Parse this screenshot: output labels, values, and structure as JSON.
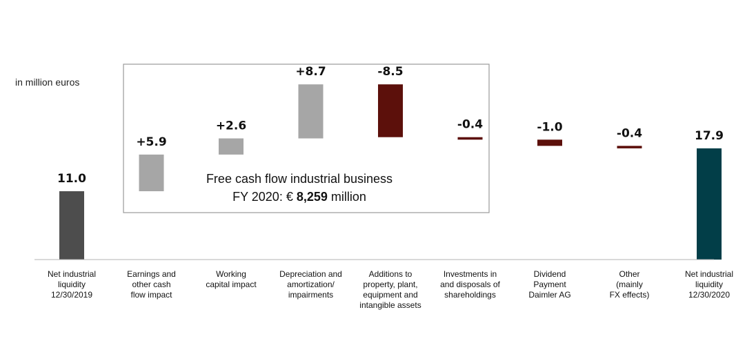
{
  "chart_data": {
    "type": "waterfall",
    "unit_label": "in million euros",
    "steps": [
      {
        "category_lines": [
          "Net industrial",
          "liquidity",
          "12/30/2019"
        ],
        "value": 11.0,
        "label": "11.0",
        "kind": "total",
        "color": "#4d4d4d"
      },
      {
        "category_lines": [
          "Earnings and",
          "other cash",
          "flow impact"
        ],
        "value": 5.9,
        "label": "+5.9",
        "kind": "increase",
        "color": "#a6a6a6"
      },
      {
        "category_lines": [
          "Working",
          "capital impact"
        ],
        "value": 2.6,
        "label": "+2.6",
        "kind": "increase",
        "color": "#a6a6a6"
      },
      {
        "category_lines": [
          "Depreciation and",
          "amortization/",
          "impairments"
        ],
        "value": 8.7,
        "label": "+8.7",
        "kind": "increase",
        "color": "#a6a6a6"
      },
      {
        "category_lines": [
          "Additions to",
          "property, plant,",
          "equipment and",
          "intangible assets"
        ],
        "value": -8.5,
        "label": "-8.5",
        "kind": "decrease",
        "color": "#5c100b"
      },
      {
        "category_lines": [
          "Investments in",
          "and disposals of",
          "shareholdings"
        ],
        "value": -0.4,
        "label": "-0.4",
        "kind": "decrease",
        "color": "#5c100b"
      },
      {
        "category_lines": [
          "Dividend",
          "Payment",
          "Daimler AG"
        ],
        "value": -1.0,
        "label": "-1.0",
        "kind": "decrease",
        "color": "#5c100b"
      },
      {
        "category_lines": [
          "Other",
          "(mainly",
          "FX effects)"
        ],
        "value": -0.4,
        "label": "-0.4",
        "kind": "decrease",
        "color": "#5c100b"
      },
      {
        "category_lines": [
          "Net industrial",
          "liquidity",
          "12/30/2020"
        ],
        "value": 17.9,
        "label": "17.9",
        "kind": "total",
        "color": "#023e48"
      }
    ],
    "annotation_box": {
      "line1": "Free cash flow industrial business",
      "line2_prefix": "FY 2020: € ",
      "line2_bold": "8,259",
      "line2_suffix": " million"
    }
  }
}
